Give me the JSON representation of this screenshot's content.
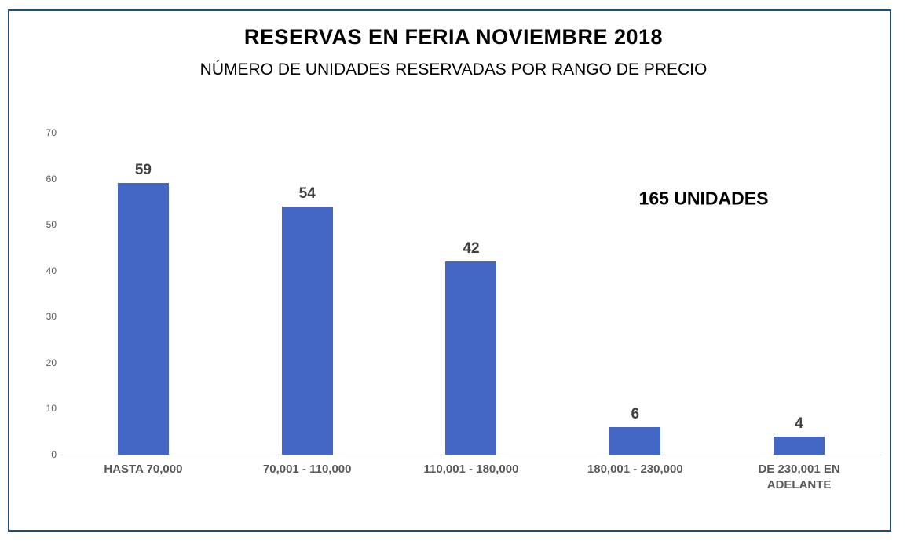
{
  "chart": {
    "title": "RESERVAS EN FERIA NOVIEMBRE 2018",
    "subtitle": "NÚMERO DE UNIDADES RESERVADAS POR RANGO DE PRECIO",
    "annotation": "165 UNIDADES"
  },
  "chart_data": {
    "type": "bar",
    "title": "RESERVAS EN FERIA NOVIEMBRE 2018",
    "subtitle": "NÚMERO DE UNIDADES RESERVADAS POR RANGO DE PRECIO",
    "categories": [
      "HASTA 70,000",
      "70,001 - 110,000",
      "110,001 - 180,000",
      "180,001 - 230,000",
      "DE 230,001 EN ADELANTE"
    ],
    "values": [
      59,
      54,
      42,
      6,
      4
    ],
    "data_labels": [
      "59",
      "54",
      "42",
      "6",
      "4"
    ],
    "annotation": "165 UNIDADES",
    "total_units": 165,
    "xlabel": "",
    "ylabel": "",
    "y_ticks": [
      0,
      10,
      20,
      30,
      40,
      50,
      60,
      70
    ],
    "ylim": [
      0,
      70
    ],
    "grid": false,
    "legend": false,
    "colors": {
      "bar_fill": "#4467C5",
      "data_label": "#404040",
      "axis_text": "#595959",
      "axis_line": "#D9D9D9",
      "frame_border": "#1F4E79",
      "title_text": "#000000"
    }
  }
}
